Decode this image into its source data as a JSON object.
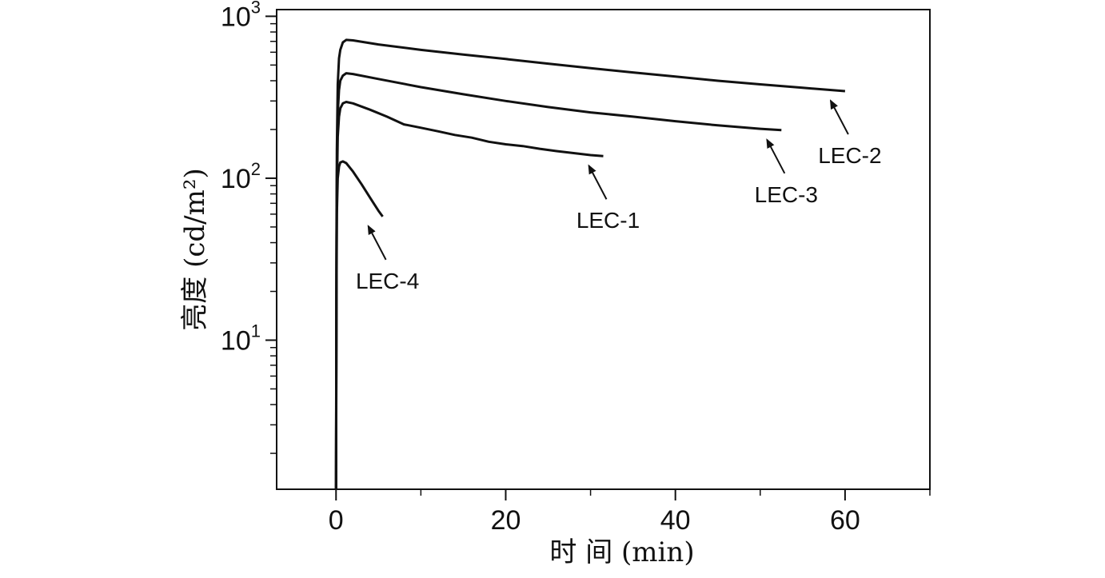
{
  "chart_data": {
    "type": "line",
    "xlabel": "时 间 (min)",
    "ylabel": "亮度 (cd/m²)",
    "yscale": "log",
    "xlim": [
      -7,
      70
    ],
    "ylim": [
      1.2,
      1100
    ],
    "x_ticks": [
      0,
      20,
      40,
      60
    ],
    "y_ticks": [
      {
        "value": 10,
        "base": "10",
        "exp": "1"
      },
      {
        "value": 100,
        "base": "10",
        "exp": "2"
      },
      {
        "value": 1000,
        "base": "10",
        "exp": "3"
      }
    ],
    "grid": false,
    "legend": "none",
    "series": [
      {
        "name": "LEC-2",
        "x": [
          0,
          0.05,
          0.1,
          0.2,
          0.35,
          0.5,
          0.8,
          1.2,
          2,
          5,
          10,
          15,
          20,
          25,
          30,
          35,
          40,
          45,
          50,
          55,
          60
        ],
        "y": [
          1.2,
          40,
          150,
          380,
          550,
          620,
          690,
          715,
          710,
          670,
          620,
          580,
          545,
          510,
          478,
          450,
          425,
          400,
          380,
          362,
          345
        ]
      },
      {
        "name": "LEC-3",
        "x": [
          0,
          0.05,
          0.1,
          0.2,
          0.35,
          0.5,
          0.8,
          1.2,
          2,
          5,
          10,
          15,
          20,
          25,
          30,
          35,
          40,
          45,
          50,
          52.5
        ],
        "y": [
          1.2,
          30,
          100,
          250,
          350,
          400,
          430,
          445,
          440,
          410,
          365,
          330,
          300,
          275,
          255,
          240,
          225,
          212,
          202,
          198
        ]
      },
      {
        "name": "LEC-1",
        "x": [
          0,
          0.05,
          0.1,
          0.2,
          0.35,
          0.5,
          0.8,
          1.2,
          2,
          4,
          6,
          8,
          10,
          12,
          14,
          16,
          18,
          20,
          22,
          24,
          26,
          28,
          30,
          31.5
        ],
        "y": [
          1.2,
          20,
          80,
          180,
          240,
          270,
          290,
          296,
          290,
          265,
          240,
          215,
          205,
          195,
          185,
          178,
          168,
          162,
          158,
          152,
          147,
          143,
          139,
          137
        ]
      },
      {
        "name": "LEC-4",
        "x": [
          0,
          0.05,
          0.1,
          0.2,
          0.35,
          0.5,
          0.8,
          1.2,
          2,
          3,
          4,
          5,
          5.5
        ],
        "y": [
          1.2,
          15,
          60,
          100,
          118,
          125,
          127,
          124,
          110,
          92,
          76,
          63,
          58
        ]
      }
    ],
    "annotations": [
      {
        "text": "LEC-2",
        "series": "LEC-2"
      },
      {
        "text": "LEC-3",
        "series": "LEC-3"
      },
      {
        "text": "LEC-1",
        "series": "LEC-1"
      },
      {
        "text": "LEC-4",
        "series": "LEC-4"
      }
    ]
  }
}
